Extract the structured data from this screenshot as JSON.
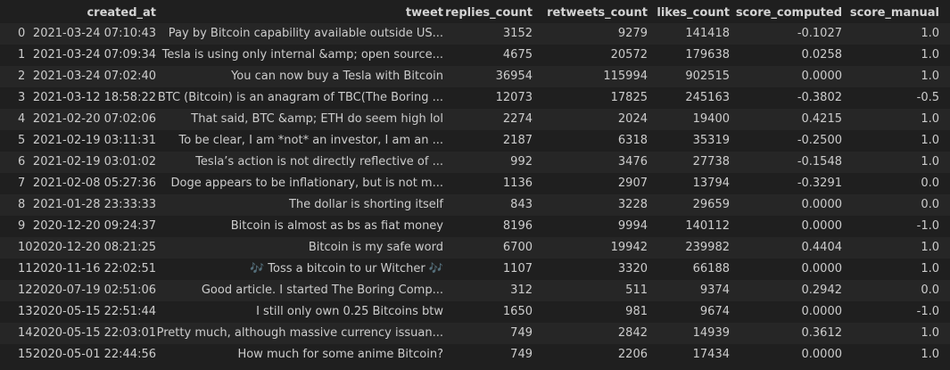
{
  "table": {
    "header": [
      "created_at",
      "tweet",
      "replies_count",
      "retweets_count",
      "likes_count",
      "score_computed",
      "score_manual"
    ],
    "rows": [
      [
        "0",
        "2021-03-24 07:10:43",
        "Pay by Bitcoin capability available outside US...",
        "3152",
        "9279",
        "141418",
        "-0.1027",
        "1.0"
      ],
      [
        "1",
        "2021-03-24 07:09:34",
        "Tesla is using only internal &amp; open source...",
        "4675",
        "20572",
        "179638",
        "0.0258",
        "1.0"
      ],
      [
        "2",
        "2021-03-24 07:02:40",
        "You can now buy a Tesla with Bitcoin",
        "36954",
        "115994",
        "902515",
        "0.0000",
        "1.0"
      ],
      [
        "3",
        "2021-03-12 18:58:22",
        "BTC (Bitcoin) is an anagram of TBC(The Boring ...",
        "12073",
        "17825",
        "245163",
        "-0.3802",
        "-0.5"
      ],
      [
        "4",
        "2021-02-20 07:02:06",
        "That said, BTC &amp; ETH do seem high lol",
        "2274",
        "2024",
        "19400",
        "0.4215",
        "1.0"
      ],
      [
        "5",
        "2021-02-19 03:11:31",
        "To be clear, I am *not* an investor, I am an ...",
        "2187",
        "6318",
        "35319",
        "-0.2500",
        "1.0"
      ],
      [
        "6",
        "2021-02-19 03:01:02",
        "Tesla’s action is not directly reflective of ...",
        "992",
        "3476",
        "27738",
        "-0.1548",
        "1.0"
      ],
      [
        "7",
        "2021-02-08 05:27:36",
        "Doge appears to be inflationary, but is not m...",
        "1136",
        "2907",
        "13794",
        "-0.3291",
        "0.0"
      ],
      [
        "8",
        "2021-01-28 23:33:33",
        "The dollar is shorting itself",
        "843",
        "3228",
        "29659",
        "0.0000",
        "0.0"
      ],
      [
        "9",
        "2020-12-20 09:24:37",
        "Bitcoin is almost as bs as fiat money",
        "8196",
        "9994",
        "140112",
        "0.0000",
        "-1.0"
      ],
      [
        "10",
        "2020-12-20 08:21:25",
        "Bitcoin is my safe word",
        "6700",
        "19942",
        "239982",
        "0.4404",
        "1.0"
      ],
      [
        "11",
        "2020-11-16 22:02:51",
        "🎶 Toss a bitcoin to ur Witcher 🎶",
        "1107",
        "3320",
        "66188",
        "0.0000",
        "1.0"
      ],
      [
        "12",
        "2020-07-19 02:51:06",
        "Good article. I started The Boring Comp...",
        "312",
        "511",
        "9374",
        "0.2942",
        "0.0"
      ],
      [
        "13",
        "2020-05-15 22:51:44",
        "I still only own 0.25 Bitcoins btw",
        "1650",
        "981",
        "9674",
        "0.0000",
        "-1.0"
      ],
      [
        "14",
        "2020-05-15 22:03:01",
        "Pretty much, although massive currency issuan...",
        "749",
        "2842",
        "14939",
        "0.3612",
        "1.0"
      ],
      [
        "15",
        "2020-05-01 22:44:56",
        "How much for some anime Bitcoin?",
        "749",
        "2206",
        "17434",
        "0.0000",
        "1.0"
      ]
    ]
  }
}
